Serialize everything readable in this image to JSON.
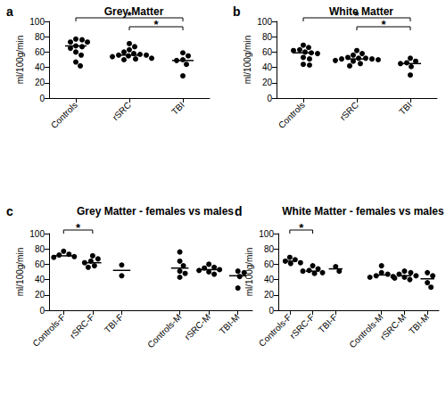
{
  "chart_data": [
    {
      "type": "scatter",
      "label": "a",
      "title": "Grey Matter",
      "y_label": "ml/100g/min",
      "categories": [
        "Controls",
        "rSRC",
        "TBI"
      ],
      "values": [
        [
          77,
          76,
          73,
          73,
          68,
          67,
          65,
          60,
          56,
          47,
          42
        ],
        [
          71,
          67,
          63,
          60,
          58,
          57,
          56,
          56,
          55,
          54,
          52,
          51,
          50
        ],
        [
          59,
          55,
          50,
          49,
          44,
          29
        ]
      ],
      "medians": [
        68,
        56,
        49
      ],
      "comparisons": [
        {
          "groups": [
            "Controls",
            "TBI"
          ],
          "label": "*"
        },
        {
          "groups": [
            "rSRC",
            "TBI"
          ],
          "label": "*"
        }
      ],
      "ylim": [
        0,
        100
      ],
      "yticks": [
        0,
        20,
        40,
        60,
        80,
        100
      ],
      "grid": false,
      "color": "#000000",
      "marker": "circle"
    },
    {
      "type": "scatter",
      "label": "b",
      "title": "White Matter",
      "y_label": "ml/100g/min",
      "categories": [
        "Controls",
        "rSRC",
        "TBI"
      ],
      "values": [
        [
          69,
          66,
          63,
          62,
          60,
          59,
          58,
          53,
          51,
          44,
          43
        ],
        [
          62,
          58,
          56,
          53,
          52,
          52,
          51,
          51,
          50,
          49,
          48,
          45,
          42
        ],
        [
          52,
          48,
          46,
          45,
          41,
          30
        ]
      ],
      "medians": [
        59,
        51,
        45
      ],
      "comparisons": [
        {
          "groups": [
            "Controls",
            "TBI"
          ],
          "label": "*"
        },
        {
          "groups": [
            "rSRC",
            "TBI"
          ],
          "label": "*"
        }
      ],
      "ylim": [
        0,
        100
      ],
      "yticks": [
        0,
        20,
        40,
        60,
        80,
        100
      ],
      "grid": false,
      "color": "#000000",
      "marker": "circle"
    },
    {
      "type": "scatter",
      "label": "c",
      "title": "Grey Matter - females vs males",
      "y_label": "ml/100g/min",
      "categories": [
        "Controls-F",
        "rSRC-F",
        "TBI-F",
        null,
        "Controls-M",
        "rSRC-M",
        "TBI-M"
      ],
      "values": [
        [
          77,
          73,
          72,
          70,
          69
        ],
        [
          71,
          67,
          64,
          62,
          58,
          56
        ],
        [
          59,
          45
        ],
        [],
        [
          76,
          64,
          58,
          51,
          48,
          43
        ],
        [
          60,
          56,
          55,
          53,
          52,
          50,
          47
        ],
        [
          51,
          49,
          44,
          29
        ]
      ],
      "medians": [
        71,
        62,
        52,
        null,
        55,
        53,
        45
      ],
      "comparisons": [
        {
          "groups": [
            "Controls-F",
            "rSRC-F"
          ],
          "label": "*"
        }
      ],
      "ylim": [
        0,
        100
      ],
      "yticks": [
        0,
        20,
        40,
        60,
        80,
        100
      ],
      "grid": false,
      "color": "#000000",
      "marker": "circle"
    },
    {
      "type": "scatter",
      "label": "d",
      "title": "White Matter - females vs males",
      "y_label": "ml/100g/min",
      "categories": [
        "Controls-F",
        "rSRC-F",
        "TBI-F",
        null,
        "Controls-M",
        "rSRC-M",
        "TBI-M"
      ],
      "values": [
        [
          69,
          66,
          64,
          62,
          61
        ],
        [
          58,
          54,
          52,
          51,
          49,
          48
        ],
        [
          57,
          51
        ],
        [],
        [
          58,
          49,
          47,
          45,
          44,
          43
        ],
        [
          51,
          49,
          47,
          45,
          43,
          42,
          40
        ],
        [
          49,
          45,
          36,
          30
        ]
      ],
      "medians": [
        64,
        51,
        54,
        null,
        46,
        45,
        41
      ],
      "comparisons": [
        {
          "groups": [
            "Controls-F",
            "rSRC-F"
          ],
          "label": "*"
        }
      ],
      "ylim": [
        0,
        100
      ],
      "yticks": [
        0,
        20,
        40,
        60,
        80,
        100
      ],
      "grid": false,
      "color": "#000000",
      "marker": "circle"
    }
  ]
}
